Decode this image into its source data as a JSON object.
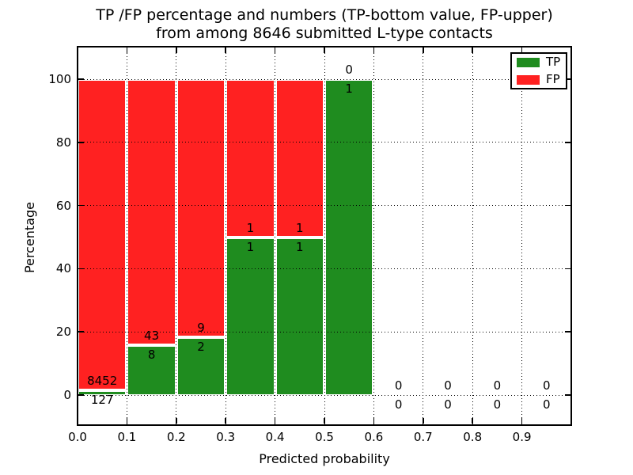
{
  "chart_data": {
    "type": "bar",
    "stacked": true,
    "title": "TP /FP percentage and numbers (TP-bottom value, FP-upper)",
    "subtitle": "from among 8646 submitted L-type contacts",
    "xlabel": "Predicted probability",
    "ylabel": "Percentage",
    "xlim": [
      0.0,
      1.0
    ],
    "ylim": [
      -10,
      110
    ],
    "grid_style": "dotted",
    "legend_position": "upper right",
    "bin_width": 0.1,
    "bin_starts": [
      0.0,
      0.1,
      0.2,
      0.3,
      0.4,
      0.5,
      0.6,
      0.7,
      0.8,
      0.9
    ],
    "xtick_labels": [
      "0.0",
      "0.1",
      "0.2",
      "0.3",
      "0.4",
      "0.5",
      "0.6",
      "0.7",
      "0.8",
      "0.9"
    ],
    "ytick_values": [
      0,
      20,
      40,
      60,
      80,
      100
    ],
    "series": [
      {
        "name": "TP",
        "color": "#1f8c1f",
        "counts": [
          127,
          8,
          2,
          1,
          1,
          1,
          0,
          0,
          0,
          0
        ]
      },
      {
        "name": "FP",
        "color": "#ff2121",
        "counts": [
          8452,
          43,
          9,
          1,
          1,
          0,
          0,
          0,
          0,
          0
        ]
      }
    ],
    "tp_percent": [
      1.48,
      15.69,
      18.18,
      50.0,
      50.0,
      100.0,
      0,
      0,
      0,
      0
    ],
    "bar_edge_color": "#ffffff",
    "text_color": "#000000",
    "background_color": "#ffffff"
  }
}
